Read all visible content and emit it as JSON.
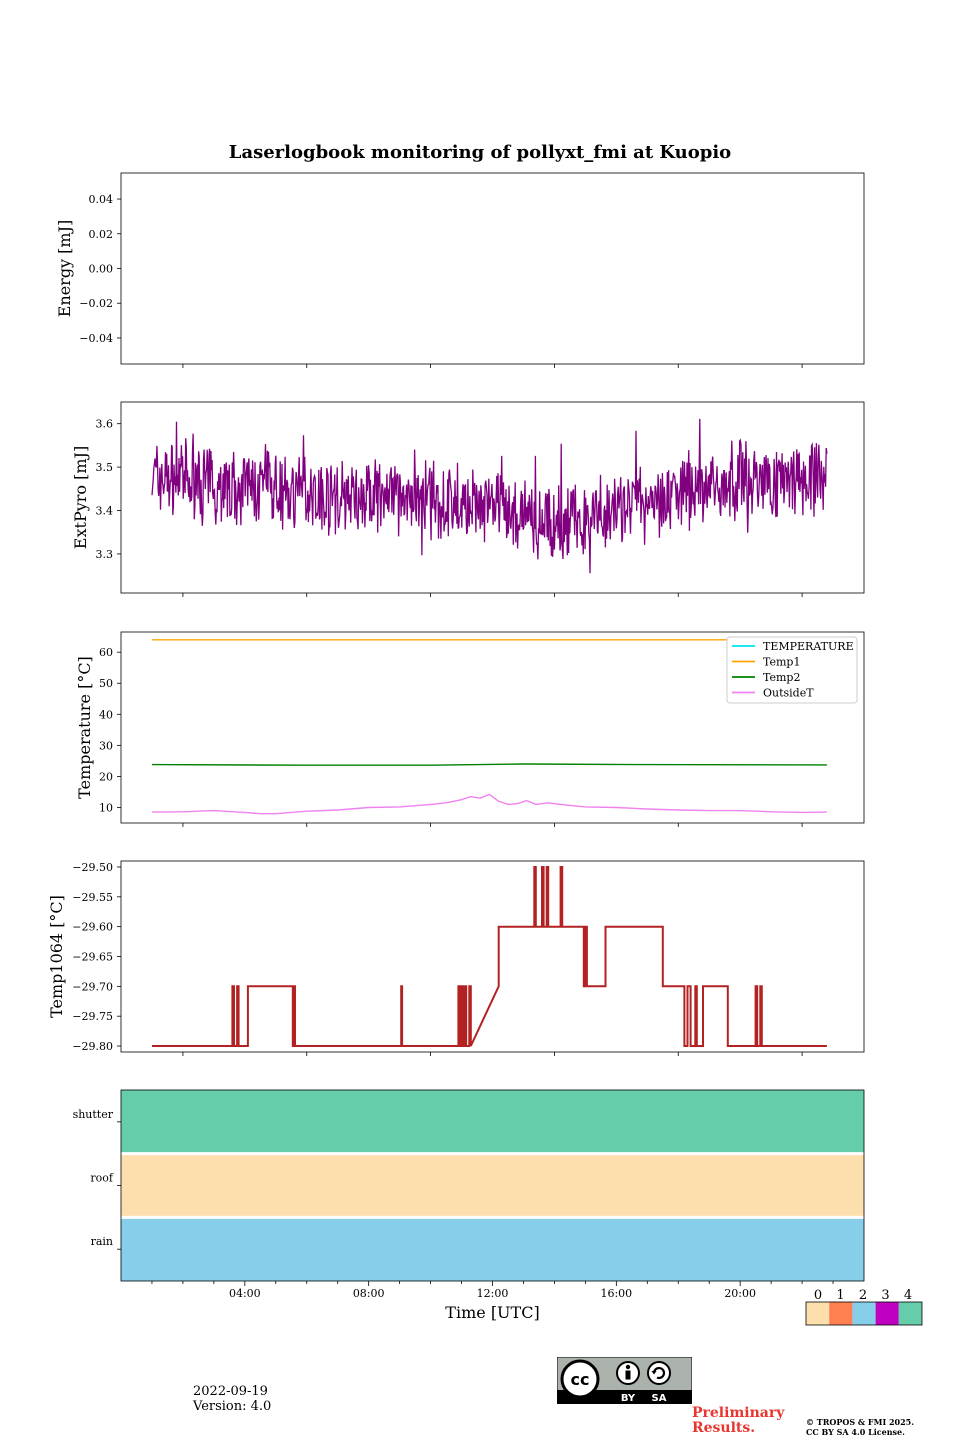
{
  "title": "Laserlogbook monitoring of pollyxt_fmi at Kuopio",
  "footer": {
    "date": "2022-09-19",
    "version": "Version: 4.0",
    "preliminary": "Preliminary Results.",
    "copyright_line1": "© TROPOS & FMI 2025.",
    "copyright_line2": "CC BY SA 4.0 License.",
    "license_badge": {
      "by": "BY",
      "sa": "SA",
      "cc": "cc"
    }
  },
  "colors": {
    "extpyro": "#800080",
    "temperature": "#00e5ee",
    "temp1": "#ffa500",
    "temp2": "#008000",
    "outsidet": "#ee82ee",
    "temp1064": "#b22222",
    "status": [
      "#fddfad",
      "#ff7f50",
      "#87ceeb",
      "#c000c0",
      "#66cdaa"
    ]
  },
  "chart_data": [
    {
      "type": "line",
      "panel": "energy",
      "ylabel": "Energy [mJ]",
      "ylim": [
        -0.055,
        0.055
      ],
      "yticks": [
        0.04,
        0.02,
        0.0,
        -0.02,
        -0.04
      ],
      "ytick_labels": [
        "0.04",
        "0.02",
        "0.00",
        "−0.02",
        "−0.04"
      ],
      "series": []
    },
    {
      "type": "line",
      "panel": "extpyro",
      "ylabel": "ExtPyro [mJ]",
      "ylim": [
        3.21,
        3.65
      ],
      "yticks": [
        3.6,
        3.5,
        3.4,
        3.3
      ],
      "ytick_labels": [
        "3.6",
        "3.5",
        "3.4",
        "3.3"
      ],
      "x_hours": [
        1.0,
        2.0,
        3.0,
        4.0,
        5.0,
        6.0,
        7.0,
        8.0,
        9.0,
        10.0,
        11.0,
        12.0,
        13.0,
        14.0,
        15.0,
        16.0,
        17.0,
        18.0,
        19.0,
        20.0,
        21.0,
        22.0,
        22.8
      ],
      "mean": [
        3.48,
        3.47,
        3.46,
        3.45,
        3.45,
        3.44,
        3.43,
        3.43,
        3.43,
        3.42,
        3.41,
        3.4,
        3.38,
        3.37,
        3.38,
        3.4,
        3.42,
        3.44,
        3.46,
        3.47,
        3.47,
        3.48,
        3.48
      ],
      "min": 3.22,
      "max": 3.63,
      "series": [
        {
          "name": "ExtPyro"
        }
      ]
    },
    {
      "type": "line",
      "panel": "temperature",
      "ylabel": "Temperature [°C]",
      "ylim": [
        5,
        66.5
      ],
      "yticks": [
        60,
        50,
        40,
        30,
        20,
        10
      ],
      "ytick_labels": [
        "60",
        "50",
        "40",
        "30",
        "20",
        "10"
      ],
      "legend": [
        "TEMPERATURE",
        "Temp1",
        "Temp2",
        "OutsideT"
      ],
      "legend_position": "top-right",
      "series": [
        {
          "name": "TEMPERATURE",
          "x": [],
          "values": []
        },
        {
          "name": "Temp1",
          "x": [
            1.0,
            22.8
          ],
          "values": [
            64,
            64
          ]
        },
        {
          "name": "Temp2",
          "x": [
            1.0,
            6.0,
            10.0,
            13.0,
            17.0,
            22.8
          ],
          "values": [
            23.8,
            23.6,
            23.6,
            24.0,
            23.8,
            23.7
          ]
        },
        {
          "name": "OutsideT",
          "x": [
            1.0,
            2.0,
            3.0,
            4.0,
            4.5,
            5.0,
            6.0,
            7.0,
            8.0,
            9.0,
            10.0,
            10.5,
            11.0,
            11.3,
            11.6,
            11.9,
            12.2,
            12.5,
            12.8,
            13.1,
            13.4,
            13.8,
            14.2,
            15.0,
            16.0,
            17.0,
            18.0,
            19.0,
            20.0,
            21.0,
            22.0,
            22.8
          ],
          "values": [
            8.5,
            8.6,
            9.0,
            8.4,
            8.0,
            8.0,
            8.8,
            9.2,
            10.0,
            10.2,
            11.0,
            11.5,
            12.5,
            13.5,
            13.0,
            14.2,
            12.0,
            11.0,
            11.2,
            12.2,
            11.0,
            11.5,
            11.0,
            10.2,
            10.0,
            9.5,
            9.2,
            9.0,
            9.0,
            8.6,
            8.4,
            8.5
          ]
        }
      ]
    },
    {
      "type": "line",
      "panel": "temp1064",
      "ylabel": "Temp1064 [°C]",
      "ylim": [
        -29.81,
        -29.49
      ],
      "yticks": [
        -29.5,
        -29.55,
        -29.6,
        -29.65,
        -29.7,
        -29.75,
        -29.8
      ],
      "ytick_labels": [
        "−29.50",
        "−29.55",
        "−29.60",
        "−29.65",
        "−29.70",
        "−29.75",
        "−29.80"
      ],
      "series": [
        {
          "name": "Temp1064",
          "x": [
            1.0,
            3.6,
            3.6,
            3.65,
            3.65,
            3.75,
            3.75,
            3.8,
            3.8,
            4.1,
            4.1,
            5.55,
            5.55,
            5.6,
            5.6,
            5.62,
            5.62,
            9.05,
            9.05,
            9.08,
            9.08,
            10.9,
            10.9,
            10.95,
            10.95,
            11.0,
            11.0,
            11.05,
            11.05,
            11.1,
            11.1,
            11.15,
            11.15,
            11.25,
            11.25,
            11.3,
            11.3,
            12.2,
            12.2,
            13.35,
            13.35,
            13.4,
            13.4,
            13.6,
            13.6,
            13.65,
            13.65,
            13.75,
            13.75,
            13.8,
            13.8,
            14.2,
            14.2,
            14.25,
            14.25,
            14.95,
            14.95,
            15.0,
            15.0,
            15.05,
            15.05,
            15.65,
            15.65,
            17.5,
            17.5,
            18.2,
            18.2,
            18.3,
            18.3,
            18.4,
            18.4,
            18.55,
            18.55,
            18.6,
            18.6,
            18.8,
            18.8,
            19.6,
            19.6,
            20.5,
            20.5,
            20.55,
            20.55,
            20.65,
            20.65,
            20.7,
            20.7,
            22.8
          ],
          "values": [
            -29.8,
            -29.8,
            -29.7,
            -29.7,
            -29.8,
            -29.8,
            -29.7,
            -29.7,
            -29.8,
            -29.8,
            -29.7,
            -29.7,
            -29.8,
            -29.8,
            -29.7,
            -29.7,
            -29.8,
            -29.8,
            -29.7,
            -29.7,
            -29.8,
            -29.8,
            -29.7,
            -29.7,
            -29.8,
            -29.8,
            -29.7,
            -29.7,
            -29.8,
            -29.8,
            -29.7,
            -29.7,
            -29.8,
            -29.8,
            -29.7,
            -29.7,
            -29.8,
            -29.7,
            -29.6,
            -29.6,
            -29.5,
            -29.5,
            -29.6,
            -29.6,
            -29.5,
            -29.5,
            -29.6,
            -29.6,
            -29.5,
            -29.5,
            -29.6,
            -29.6,
            -29.5,
            -29.5,
            -29.6,
            -29.6,
            -29.7,
            -29.7,
            -29.6,
            -29.6,
            -29.7,
            -29.7,
            -29.6,
            -29.6,
            -29.7,
            -29.7,
            -29.8,
            -29.8,
            -29.7,
            -29.7,
            -29.8,
            -29.8,
            -29.7,
            -29.7,
            -29.8,
            -29.8,
            -29.7,
            -29.7,
            -29.8,
            -29.8,
            -29.7,
            -29.7,
            -29.8,
            -29.8,
            -29.7,
            -29.7,
            -29.8,
            -29.8
          ]
        }
      ]
    },
    {
      "type": "heatmap",
      "panel": "status",
      "rows": [
        "shutter",
        "roof",
        "rain"
      ],
      "row_values": [
        4,
        0,
        2
      ],
      "xlabel": "Time [UTC]",
      "xlim": [
        0,
        24
      ],
      "xticks": [
        4,
        8,
        12,
        16,
        20
      ],
      "xtick_labels": [
        "04:00",
        "08:00",
        "12:00",
        "16:00",
        "20:00"
      ],
      "colorbar": {
        "ticks": [
          "0",
          "1",
          "2",
          "3",
          "4"
        ]
      }
    }
  ]
}
